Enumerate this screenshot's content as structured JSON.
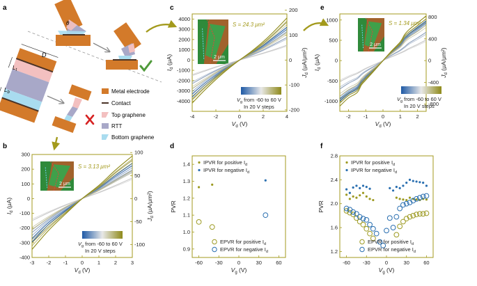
{
  "panel_labels": {
    "a": "a",
    "b": "b",
    "c": "c",
    "d": "d",
    "e": "e",
    "f": "f"
  },
  "colors": {
    "axis": "#a39a1c",
    "electrode": "#d37a2a",
    "contact": "#4a3326",
    "top_graphene": "#f3c0c0",
    "rtt": "#a8a8c8",
    "bottom_graphene": "#a9dcef",
    "check": "#4f9a3a",
    "cross": "#d62222",
    "olive": "#9d9a22",
    "blue": "#2a6fb0",
    "area_text": "#a39a1c",
    "cbar_start": "#1f5aa6",
    "cbar_mid": "#e8e8e8",
    "cbar_end": "#8f8a1a"
  },
  "schematic": {
    "dim_D": "D",
    "dim_Lt": "L",
    "dim_Lt_sub": "t",
    "dim_Lb": "L",
    "dim_Lb_sub": "b",
    "theta": "θ",
    "legend": [
      {
        "label": "Metal electrode",
        "key": "electrode"
      },
      {
        "label": "Contact",
        "key": "contact"
      },
      {
        "label": "Top graphene",
        "key": "top_graphene"
      },
      {
        "label": "RTT",
        "key": "rtt"
      },
      {
        "label": "Bottom graphene",
        "key": "bottom_graphene"
      }
    ],
    "ok_icon": "check-icon",
    "bad_icon": "cross-icon"
  },
  "chart_data": [
    {
      "id": "b",
      "type": "line",
      "xlabel": "V",
      "xlabel_sub": "d",
      "xlabel_unit": " (V)",
      "ylabel": "I",
      "ylabel_sub": "d",
      "ylabel_unit": " (μA)",
      "y2label": "J",
      "y2label_sub": "d",
      "y2label_unit": " (μA/μm²)",
      "xlim": [
        -3,
        3
      ],
      "ylim": [
        -400,
        300
      ],
      "y2lim": [
        -127.8,
        95.8
      ],
      "xticks": [
        "-3",
        "-2",
        "-1",
        "0",
        "1",
        "2",
        "3"
      ],
      "yticks": [
        "-400",
        "-300",
        "-200",
        "-100",
        "0",
        "100",
        "200",
        "300"
      ],
      "y2ticks": [
        "-100",
        "-50",
        "0",
        "50",
        "100"
      ],
      "area_label": "S = 3.13 μm²",
      "scalebar": "2 μm",
      "colorbar_text": "V",
      "colorbar_sub": "g",
      "colorbar_range": " from -60 to 60 V",
      "colorbar_steps": "In 20 V steps",
      "gate_V": [
        -60,
        -40,
        -20,
        0,
        20,
        40,
        60
      ],
      "series": [
        {
          "Vg": -60,
          "x": [
            -3,
            -2,
            -1,
            0,
            1,
            2,
            3
          ],
          "y": [
            -295,
            -175,
            -85,
            0,
            75,
            160,
            240
          ]
        },
        {
          "Vg": -40,
          "x": [
            -3,
            -2,
            -1,
            0,
            1,
            2,
            3
          ],
          "y": [
            -270,
            -160,
            -78,
            0,
            70,
            150,
            225
          ]
        },
        {
          "Vg": -20,
          "x": [
            -3,
            -2,
            -1,
            0,
            1,
            2,
            3
          ],
          "y": [
            -230,
            -140,
            -65,
            0,
            60,
            130,
            195
          ]
        },
        {
          "Vg": 0,
          "x": [
            -3,
            -2,
            -1,
            0,
            1,
            2,
            3
          ],
          "y": [
            -150,
            -95,
            -45,
            0,
            42,
            90,
            140
          ]
        },
        {
          "Vg": 20,
          "x": [
            -3,
            -2,
            -1,
            0,
            1,
            2,
            3
          ],
          "y": [
            -210,
            -130,
            -60,
            0,
            58,
            125,
            190
          ]
        },
        {
          "Vg": 40,
          "x": [
            -3,
            -2,
            -1,
            0,
            1,
            2,
            3
          ],
          "y": [
            -300,
            -190,
            -95,
            0,
            80,
            175,
            260
          ]
        },
        {
          "Vg": 60,
          "x": [
            -3,
            -2,
            -1,
            0,
            1,
            2,
            3
          ],
          "y": [
            -345,
            -215,
            -105,
            0,
            90,
            195,
            290
          ]
        }
      ]
    },
    {
      "id": "c",
      "type": "line",
      "xlabel": "V",
      "xlabel_sub": "d",
      "xlabel_unit": " (V)",
      "ylabel": "I",
      "ylabel_sub": "d",
      "ylabel_unit": " (μA)",
      "y2label": "J",
      "y2label_sub": "d",
      "y2label_unit": " (μA/μm²)",
      "xlim": [
        -4,
        4
      ],
      "ylim": [
        -5000,
        4500
      ],
      "y2lim": [
        -205.8,
        185.2
      ],
      "xticks": [
        "-4",
        "-2",
        "0",
        "2",
        "4"
      ],
      "yticks": [
        "-4000",
        "-3000",
        "-2000",
        "-1000",
        "0",
        "1000",
        "2000",
        "3000",
        "4000"
      ],
      "y2ticks": [
        "-200",
        "-100",
        "0",
        "100",
        "200"
      ],
      "area_label": "S = 24.3 μm²",
      "scalebar": "2 μm",
      "colorbar_text": "V",
      "colorbar_sub": "g",
      "colorbar_range": " from -60 to 60 V",
      "colorbar_steps": "In 20 V steps",
      "gate_V": [
        -60,
        -40,
        -20,
        0,
        20,
        40,
        60
      ],
      "series": [
        {
          "Vg": -60,
          "x": [
            -4,
            -3,
            -2,
            -1,
            0,
            1,
            2,
            3,
            4
          ],
          "y": [
            -3600,
            -2500,
            -1600,
            -750,
            0,
            700,
            1450,
            2300,
            3200
          ]
        },
        {
          "Vg": -40,
          "x": [
            -4,
            -3,
            -2,
            -1,
            0,
            1,
            2,
            3,
            4
          ],
          "y": [
            -3300,
            -2300,
            -1450,
            -680,
            0,
            650,
            1350,
            2150,
            3000
          ]
        },
        {
          "Vg": -20,
          "x": [
            -4,
            -3,
            -2,
            -1,
            0,
            1,
            2,
            3,
            4
          ],
          "y": [
            -2300,
            -1650,
            -1050,
            -500,
            0,
            480,
            1000,
            1600,
            2200
          ]
        },
        {
          "Vg": 0,
          "x": [
            -4,
            -3,
            -2,
            -1,
            0,
            1,
            2,
            3,
            4
          ],
          "y": [
            -1500,
            -1100,
            -700,
            -350,
            0,
            330,
            680,
            1050,
            1450
          ]
        },
        {
          "Vg": 20,
          "x": [
            -4,
            -3,
            -2,
            -1,
            0,
            1,
            2,
            3,
            4
          ],
          "y": [
            -2800,
            -2000,
            -1250,
            -600,
            0,
            580,
            1200,
            1900,
            2700
          ]
        },
        {
          "Vg": 40,
          "x": [
            -4,
            -3,
            -2,
            -1,
            0,
            1,
            2,
            3,
            4
          ],
          "y": [
            -3800,
            -2700,
            -1700,
            -800,
            0,
            760,
            1600,
            2600,
            3700
          ]
        },
        {
          "Vg": 60,
          "x": [
            -4,
            -3,
            -2,
            -1,
            0,
            1,
            2,
            3,
            4
          ],
          "y": [
            -4200,
            -3000,
            -1900,
            -900,
            0,
            850,
            1800,
            2900,
            4100
          ]
        }
      ]
    },
    {
      "id": "e",
      "type": "line",
      "xlabel": "V",
      "xlabel_sub": "d",
      "xlabel_unit": " (V)",
      "ylabel": "I",
      "ylabel_sub": "d",
      "ylabel_unit": " (μA)",
      "y2label": "J",
      "y2label_sub": "d",
      "y2label_unit": " (μA/μm²)",
      "xlim": [
        -2.5,
        2.5
      ],
      "ylim": [
        -1250,
        1150
      ],
      "y2lim": [
        -932.8,
        858.2
      ],
      "xticks": [
        "-2",
        "-1",
        "0",
        "1",
        "2"
      ],
      "yticks": [
        "-1000",
        "-500",
        "0",
        "500",
        "1000"
      ],
      "y2ticks": [
        "-800",
        "-400",
        "0",
        "400",
        "800"
      ],
      "area_label": "S = 1.34 μm²",
      "scalebar": "2 μm",
      "colorbar_text": "V",
      "colorbar_sub": "g",
      "colorbar_range": " from -60 to 60 V",
      "colorbar_steps": "In 20 V steps",
      "gate_V": [
        -60,
        -40,
        -20,
        0,
        20,
        40,
        60
      ],
      "series": [
        {
          "Vg": -60,
          "x": [
            -2.5,
            -2,
            -1.5,
            -1.25,
            -1,
            -0.5,
            0,
            0.5,
            1,
            1.25,
            1.5,
            2,
            2.5
          ],
          "y": [
            -1000,
            -820,
            -700,
            -540,
            -420,
            -220,
            0,
            210,
            400,
            560,
            660,
            820,
            980
          ]
        },
        {
          "Vg": -40,
          "x": [
            -2.5,
            -2,
            -1.5,
            -1.25,
            -1,
            -0.5,
            0,
            0.5,
            1,
            1.25,
            1.5,
            2,
            2.5
          ],
          "y": [
            -950,
            -790,
            -670,
            -500,
            -400,
            -205,
            0,
            200,
            390,
            530,
            640,
            790,
            940
          ]
        },
        {
          "Vg": -20,
          "x": [
            -2.5,
            -2,
            -1.5,
            -1.25,
            -1,
            -0.5,
            0,
            0.5,
            1,
            1.25,
            1.5,
            2,
            2.5
          ],
          "y": [
            -700,
            -560,
            -450,
            -350,
            -270,
            -140,
            0,
            135,
            260,
            340,
            430,
            560,
            700
          ]
        },
        {
          "Vg": 0,
          "x": [
            -2.5,
            -2,
            -1.5,
            -1.25,
            -1,
            -0.5,
            0,
            0.5,
            1,
            1.25,
            1.5,
            2,
            2.5
          ],
          "y": [
            -520,
            -410,
            -320,
            -260,
            -200,
            -100,
            0,
            95,
            190,
            240,
            300,
            400,
            510
          ]
        },
        {
          "Vg": 20,
          "x": [
            -2.5,
            -2,
            -1.5,
            -1.25,
            -1,
            -0.5,
            0,
            0.5,
            1,
            1.25,
            1.5,
            2,
            2.5
          ],
          "y": [
            -880,
            -720,
            -600,
            -470,
            -360,
            -185,
            0,
            180,
            350,
            480,
            580,
            720,
            880
          ]
        },
        {
          "Vg": 40,
          "x": [
            -2.5,
            -2,
            -1.5,
            -1.25,
            -1,
            -0.5,
            0,
            0.5,
            1,
            1.25,
            1.5,
            2,
            2.5
          ],
          "y": [
            -1050,
            -860,
            -740,
            -570,
            -450,
            -230,
            0,
            225,
            430,
            600,
            700,
            860,
            1030
          ]
        },
        {
          "Vg": 60,
          "x": [
            -2.5,
            -2,
            -1.5,
            -1.25,
            -1,
            -0.5,
            0,
            0.5,
            1,
            1.25,
            1.5,
            2,
            2.5
          ],
          "y": [
            -1120,
            -920,
            -790,
            -600,
            -480,
            -245,
            0,
            240,
            460,
            640,
            760,
            930,
            1100
          ]
        }
      ]
    },
    {
      "id": "d",
      "type": "scatter",
      "xlabel": "V",
      "xlabel_sub": "g",
      "xlabel_unit": " (V)",
      "ylabel": "PVR",
      "xlim": [
        -70,
        70
      ],
      "ylim": [
        0.85,
        1.45
      ],
      "xticks": [
        "-60",
        "-30",
        "0",
        "30",
        "60"
      ],
      "yticks": [
        "0.9",
        "1.0",
        "1.1",
        "1.2",
        "1.3",
        "1.4"
      ],
      "legend_top": [
        {
          "label": "IPVR for positive I",
          "sub": "d",
          "color": "olive"
        },
        {
          "label": "IPVR for negative I",
          "sub": "d",
          "color": "blue"
        }
      ],
      "legend_bottom": [
        {
          "label": "EPVR for positive I",
          "sub": "d",
          "color": "olive"
        },
        {
          "label": "EPVR for negative I",
          "sub": "d",
          "color": "blue"
        }
      ],
      "series": [
        {
          "name": "IPVR positive",
          "marker": "dot",
          "color": "olive",
          "x": [
            -60,
            -40
          ],
          "y": [
            1.265,
            1.28
          ]
        },
        {
          "name": "IPVR negative",
          "marker": "dot",
          "color": "blue",
          "x": [
            40
          ],
          "y": [
            1.305
          ]
        },
        {
          "name": "EPVR positive",
          "marker": "circle",
          "color": "olive",
          "x": [
            -60,
            -40
          ],
          "y": [
            1.06,
            1.03
          ]
        },
        {
          "name": "EPVR negative",
          "marker": "circle",
          "color": "blue",
          "x": [
            40
          ],
          "y": [
            1.1
          ]
        }
      ]
    },
    {
      "id": "f",
      "type": "scatter",
      "xlabel": "V",
      "xlabel_sub": "g",
      "xlabel_unit": " (V)",
      "ylabel": "PVR",
      "xlim": [
        -70,
        70
      ],
      "ylim": [
        1.1,
        2.8
      ],
      "xticks": [
        "-60",
        "-30",
        "0",
        "30",
        "60"
      ],
      "yticks": [
        "1.2",
        "1.6",
        "2.0",
        "2.4",
        "2.8"
      ],
      "legend_top": [
        {
          "label": "IPVR for positive I",
          "sub": "d",
          "color": "olive"
        },
        {
          "label": "IPVR for negative I",
          "sub": "d",
          "color": "blue"
        }
      ],
      "legend_bottom": [
        {
          "label": "EPVR for positive I",
          "sub": "d",
          "color": "olive"
        },
        {
          "label": "EPVR for negative I",
          "sub": "d",
          "color": "blue"
        }
      ],
      "series": [
        {
          "name": "IPVR positive",
          "marker": "dot",
          "color": "olive",
          "x": [
            -60,
            -55,
            -50,
            -45,
            -40,
            -35,
            -30,
            -25,
            -20,
            15,
            20,
            25,
            30,
            35,
            40,
            45,
            50,
            55,
            60
          ],
          "y": [
            2.15,
            2.08,
            2.12,
            2.1,
            2.14,
            2.18,
            2.12,
            2.08,
            2.06,
            2.1,
            2.08,
            2.07,
            2.06,
            2.1,
            2.08,
            2.07,
            2.06,
            2.08,
            2.07
          ]
        },
        {
          "name": "IPVR negative",
          "marker": "dot",
          "color": "blue",
          "x": [
            -60,
            -55,
            -50,
            -45,
            -40,
            -35,
            -30,
            -25,
            5,
            10,
            15,
            20,
            25,
            30,
            35,
            40,
            45,
            50,
            55,
            60
          ],
          "y": [
            2.24,
            2.18,
            2.27,
            2.3,
            2.26,
            2.3,
            2.28,
            2.25,
            2.26,
            2.22,
            2.28,
            2.26,
            2.3,
            2.35,
            2.4,
            2.38,
            2.37,
            2.36,
            2.35,
            2.3
          ]
        },
        {
          "name": "EPVR positive",
          "marker": "circle",
          "color": "olive",
          "x": [
            -60,
            -55,
            -50,
            -45,
            -40,
            -35,
            -30,
            -25,
            -20,
            15,
            20,
            25,
            30,
            35,
            40,
            45,
            50,
            55,
            60
          ],
          "y": [
            1.88,
            1.85,
            1.82,
            1.76,
            1.7,
            1.65,
            1.58,
            1.5,
            1.42,
            1.48,
            1.62,
            1.7,
            1.75,
            1.78,
            1.8,
            1.82,
            1.83,
            1.83,
            1.84
          ]
        },
        {
          "name": "EPVR negative",
          "marker": "circle",
          "color": "blue",
          "x": [
            -60,
            -55,
            -50,
            -45,
            -40,
            -35,
            -30,
            -25,
            -20,
            -15,
            -10,
            -5,
            0,
            5,
            10,
            15,
            20,
            25,
            30,
            35,
            40,
            45,
            50,
            55,
            60
          ],
          "y": [
            1.92,
            1.9,
            1.86,
            1.83,
            1.78,
            1.75,
            1.73,
            1.65,
            1.58,
            1.5,
            1.36,
            1.3,
            1.55,
            1.76,
            1.6,
            1.78,
            1.92,
            1.98,
            2.0,
            2.02,
            2.05,
            2.08,
            2.1,
            2.12,
            2.13
          ]
        }
      ]
    }
  ]
}
